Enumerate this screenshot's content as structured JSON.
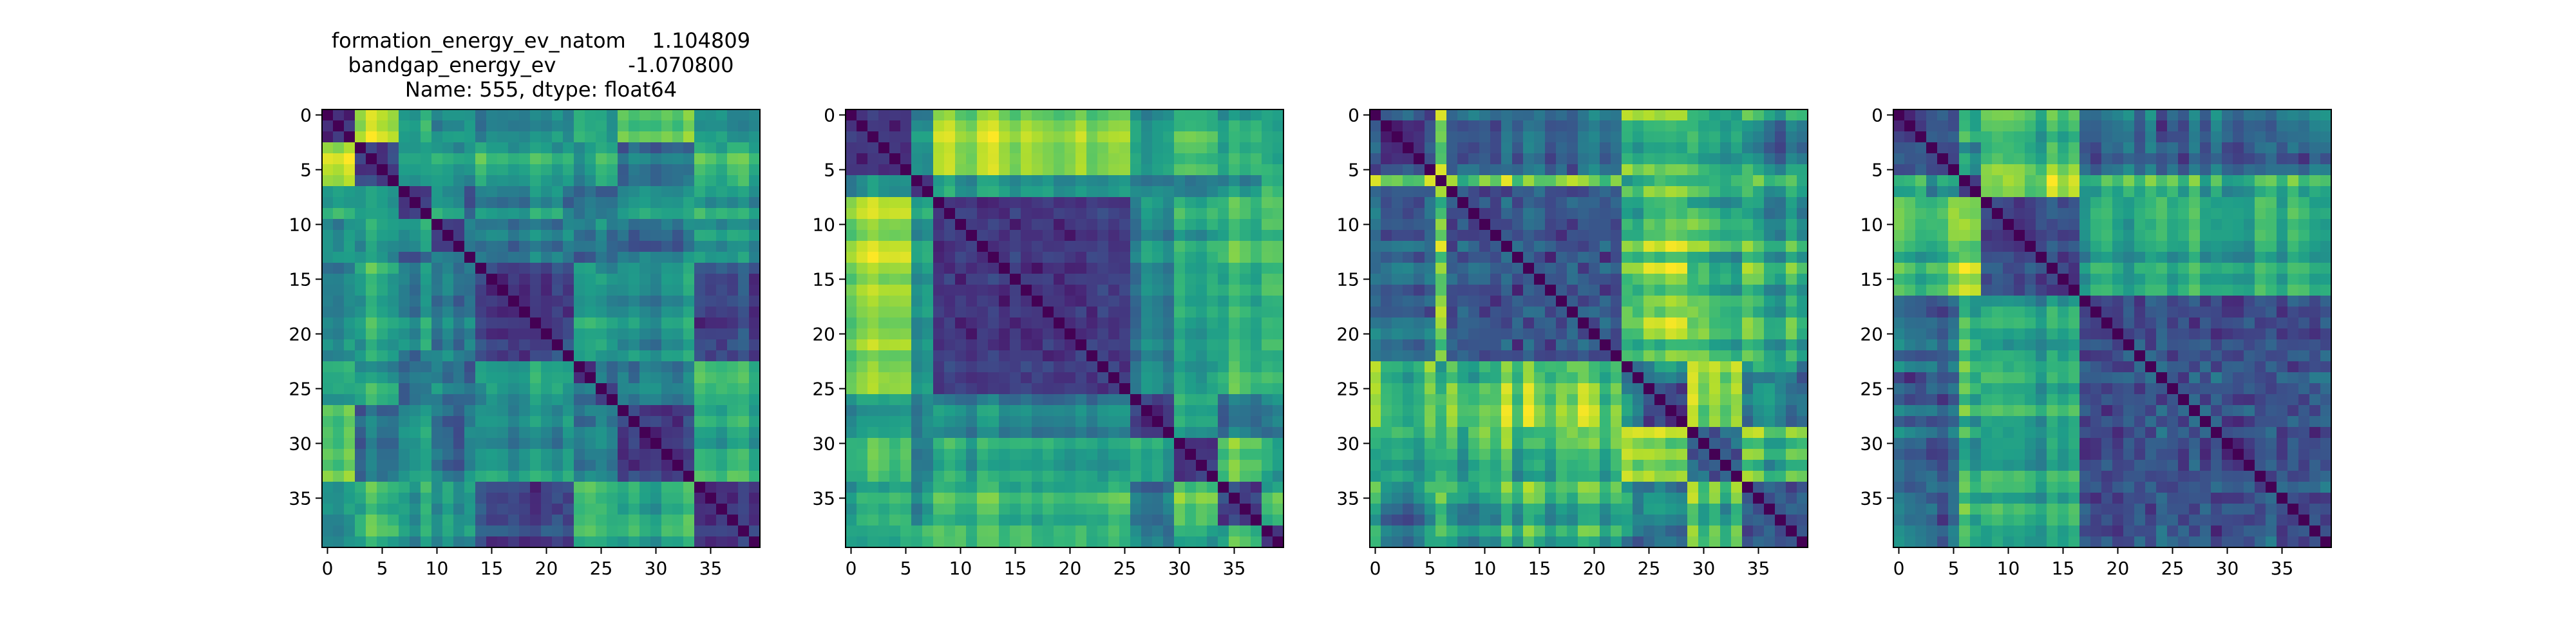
{
  "chart_data": [
    {
      "type": "heatmap",
      "title_lines": [
        "formation_energy_ev_natom    1.104809",
        "bandgap_energy_ev           -1.070800",
        "Name: 555, dtype: float64"
      ],
      "matrix_size": 40,
      "xticks": [
        0,
        5,
        10,
        15,
        20,
        25,
        30,
        35
      ],
      "yticks": [
        0,
        5,
        10,
        15,
        20,
        25,
        30,
        35
      ],
      "colormap": "viridis",
      "diagonal": "minimum (dark)",
      "seed": 11
    },
    {
      "type": "heatmap",
      "title_lines": [],
      "matrix_size": 40,
      "xticks": [
        0,
        5,
        10,
        15,
        20,
        25,
        30,
        35
      ],
      "yticks": [
        0,
        5,
        10,
        15,
        20,
        25,
        30,
        35
      ],
      "colormap": "viridis",
      "diagonal": "minimum (dark)",
      "seed": 23
    },
    {
      "type": "heatmap",
      "title_lines": [],
      "matrix_size": 40,
      "xticks": [
        0,
        5,
        10,
        15,
        20,
        25,
        30,
        35
      ],
      "yticks": [
        0,
        5,
        10,
        15,
        20,
        25,
        30,
        35
      ],
      "colormap": "viridis",
      "diagonal": "minimum (dark)",
      "seed": 37
    },
    {
      "type": "heatmap",
      "title_lines": [],
      "matrix_size": 40,
      "xticks": [
        0,
        5,
        10,
        15,
        20,
        25,
        30,
        35
      ],
      "yticks": [
        0,
        5,
        10,
        15,
        20,
        25,
        30,
        35
      ],
      "colormap": "viridis",
      "diagonal": "minimum (dark)",
      "seed": 53
    }
  ]
}
